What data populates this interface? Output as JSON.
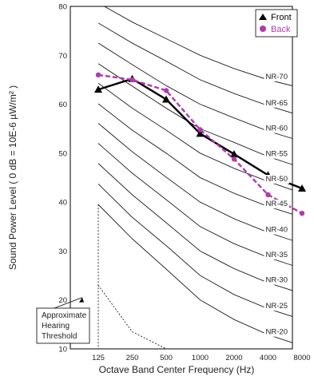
{
  "chart_data": {
    "type": "line",
    "title": "",
    "xlabel": "Octave Band Center Frequency (Hz)",
    "ylabel": "Sound Power Level ( 0 dB  = 10E-6 µW/m² )",
    "categories": [
      "125",
      "250",
      "500",
      "1000",
      "2000",
      "4000",
      "8000"
    ],
    "ylim": [
      10,
      80
    ],
    "yticks": [
      "10",
      "20",
      "30",
      "40",
      "50",
      "60",
      "70",
      "80"
    ],
    "legend_position": "top-right",
    "series": [
      {
        "name": "Front",
        "color": "#000000",
        "style": "solid",
        "marker": "triangle",
        "values": [
          63,
          65.2,
          61,
          54,
          49.8,
          45.5,
          42.8
        ]
      },
      {
        "name": "Back",
        "color": "#b03ab0",
        "style": "dashed",
        "marker": "circle",
        "values": [
          66,
          65,
          62.8,
          54.8,
          48.8,
          41.5,
          37.7
        ]
      }
    ],
    "nr_curves": [
      {
        "label": "NR-70",
        "values": [
          80.7,
          76.8,
          73.4,
          70,
          67.3,
          65,
          63.3
        ]
      },
      {
        "label": "NR-65",
        "values": [
          76.6,
          72.5,
          68.8,
          65,
          62.2,
          59.7,
          57.6
        ]
      },
      {
        "label": "NR-60",
        "values": [
          72.5,
          68.1,
          63.8,
          60,
          57.2,
          54.5,
          52.4
        ]
      },
      {
        "label": "NR-55",
        "values": [
          68.3,
          63.7,
          59.2,
          55,
          52.2,
          49.3,
          47
        ]
      },
      {
        "label": "NR-50",
        "values": [
          64.3,
          59.2,
          54.7,
          50,
          46.9,
          44.2,
          41.8
        ]
      },
      {
        "label": "NR-45",
        "values": [
          60.1,
          54.7,
          50,
          45,
          41.8,
          39.1,
          36.9
        ]
      },
      {
        "label": "NR-40",
        "values": [
          56.1,
          50.3,
          45.1,
          40,
          36.6,
          33.8,
          31.5
        ]
      },
      {
        "label": "NR-35",
        "values": [
          52,
          45.9,
          40.5,
          35,
          31.5,
          28.7,
          26.4
        ]
      },
      {
        "label": "NR-30",
        "values": [
          47.9,
          41.5,
          35.8,
          30,
          26.4,
          23.5,
          21.3
        ]
      },
      {
        "label": "NR-25",
        "values": [
          43.7,
          36.9,
          31.1,
          25,
          21.1,
          18.2,
          16
        ]
      },
      {
        "label": "NR-20",
        "values": [
          39.5,
          32.5,
          26.3,
          20,
          16,
          12.9,
          10.6
        ]
      }
    ],
    "threshold_curve": [
      23,
      13.5,
      10,
      9
    ],
    "annotation": [
      "Approximate",
      "Hearing",
      "Threshold"
    ]
  }
}
